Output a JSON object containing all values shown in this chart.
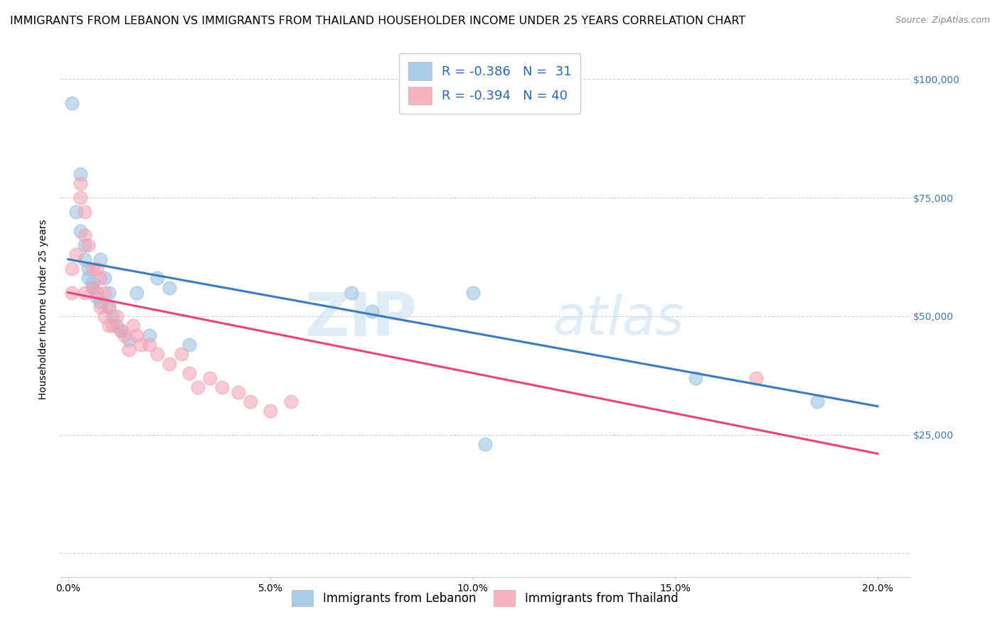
{
  "title": "IMMIGRANTS FROM LEBANON VS IMMIGRANTS FROM THAILAND HOUSEHOLDER INCOME UNDER 25 YEARS CORRELATION CHART",
  "source": "Source: ZipAtlas.com",
  "ylabel": "Householder Income Under 25 years",
  "xlabel_ticks": [
    "0.0%",
    "5.0%",
    "10.0%",
    "15.0%",
    "20.0%"
  ],
  "xlabel_vals": [
    0.0,
    0.05,
    0.1,
    0.15,
    0.2
  ],
  "ylabel_vals": [
    0,
    25000,
    50000,
    75000,
    100000
  ],
  "ylim": [
    -5000,
    108000
  ],
  "xlim": [
    -0.002,
    0.208
  ],
  "legend_entries": [
    {
      "label": "R = -0.386   N =  31",
      "color": "#aec6e8"
    },
    {
      "label": "R = -0.394   N = 40",
      "color": "#f4b8c1"
    }
  ],
  "lebanon_x": [
    0.001,
    0.003,
    0.003,
    0.004,
    0.004,
    0.005,
    0.005,
    0.006,
    0.006,
    0.007,
    0.008,
    0.008,
    0.009,
    0.01,
    0.01,
    0.011,
    0.012,
    0.013,
    0.015,
    0.017,
    0.02,
    0.022,
    0.025,
    0.03,
    0.07,
    0.075,
    0.1,
    0.103,
    0.155,
    0.185,
    0.002
  ],
  "lebanon_y": [
    95000,
    80000,
    68000,
    65000,
    62000,
    60000,
    58000,
    57000,
    56000,
    54000,
    53000,
    62000,
    58000,
    55000,
    52000,
    50000,
    48000,
    47000,
    45000,
    55000,
    46000,
    58000,
    56000,
    44000,
    55000,
    51000,
    55000,
    23000,
    37000,
    32000,
    72000
  ],
  "thailand_x": [
    0.001,
    0.002,
    0.003,
    0.003,
    0.004,
    0.004,
    0.004,
    0.005,
    0.006,
    0.006,
    0.007,
    0.007,
    0.008,
    0.008,
    0.009,
    0.009,
    0.01,
    0.01,
    0.011,
    0.012,
    0.013,
    0.014,
    0.015,
    0.016,
    0.017,
    0.018,
    0.02,
    0.022,
    0.025,
    0.028,
    0.03,
    0.032,
    0.035,
    0.038,
    0.042,
    0.045,
    0.05,
    0.055,
    0.17,
    0.001
  ],
  "thailand_y": [
    60000,
    63000,
    78000,
    75000,
    72000,
    67000,
    55000,
    65000,
    60000,
    56000,
    60000,
    55000,
    58000,
    52000,
    55000,
    50000,
    52000,
    48000,
    48000,
    50000,
    47000,
    46000,
    43000,
    48000,
    46000,
    44000,
    44000,
    42000,
    40000,
    42000,
    38000,
    35000,
    37000,
    35000,
    34000,
    32000,
    30000,
    32000,
    37000,
    55000
  ],
  "blue_line_x": [
    0.0,
    0.2
  ],
  "blue_line_y": [
    62000,
    31000
  ],
  "pink_line_x": [
    0.0,
    0.2
  ],
  "pink_line_y": [
    55000,
    21000
  ],
  "watermark_zip": "ZIP",
  "watermark_atlas": "atlas",
  "blue_color": "#92bfe0",
  "pink_color": "#f4a0b0",
  "blue_line_color": "#3a7abf",
  "pink_line_color": "#e8437a",
  "title_fontsize": 11.5,
  "axis_label_fontsize": 10,
  "tick_fontsize": 10,
  "right_tick_color": "#3a7abf"
}
